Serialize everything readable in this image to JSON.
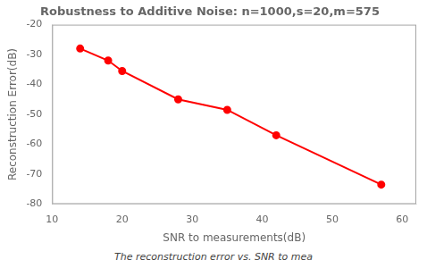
{
  "chart_data": {
    "type": "line",
    "title": "Robustness to Additive Noise: n=1000,s=20,m=575",
    "xlabel": "SNR to measurements(dB)",
    "ylabel": "Reconstruction Error(dB)",
    "annotations": [
      "The reconstruction error vs. SNR to mea"
    ],
    "x": [
      14,
      18,
      20,
      28,
      35,
      42,
      57
    ],
    "values": [
      -28.0,
      -32.0,
      -35.5,
      -45.0,
      -48.5,
      -57.0,
      -73.5
    ],
    "color": "#FF0000",
    "marker": "circle",
    "xlim": [
      10,
      62
    ],
    "ylim": [
      -80,
      -20
    ],
    "xticks": [
      10,
      20,
      30,
      40,
      50,
      60
    ],
    "yticks": [
      -80,
      -70,
      -60,
      -50,
      -40,
      -30,
      -20
    ],
    "grid": false
  }
}
